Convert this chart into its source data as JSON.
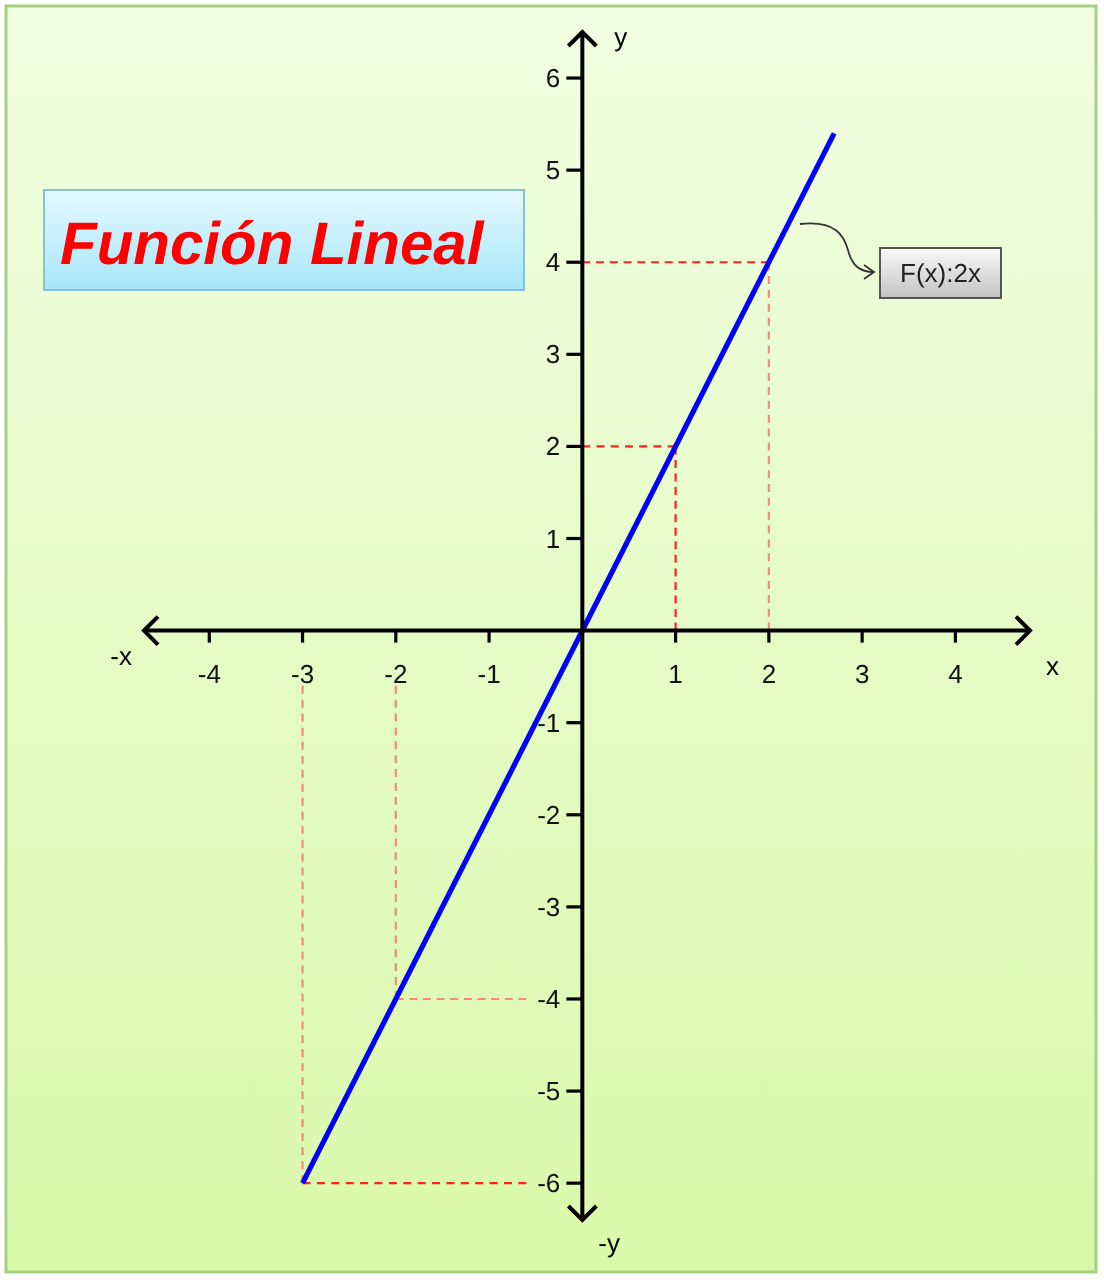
{
  "chart_data": {
    "type": "line",
    "title": "Función Lineal",
    "xlabel": "x",
    "ylabel": "y",
    "annotations": [
      "F(x):2x",
      "-x",
      "-y"
    ],
    "xlim": [
      -4.7,
      4.8
    ],
    "ylim": [
      -6.4,
      6.5
    ],
    "xticks": [
      -4,
      -3,
      -2,
      -1,
      1,
      2,
      3,
      4
    ],
    "yticks": [
      -6,
      -5,
      -4,
      -3,
      -2,
      -1,
      1,
      2,
      3,
      4,
      5,
      6
    ],
    "series": [
      {
        "color": "#ff2020",
        "x": [
          0,
          2
        ],
        "values": [
          4,
          4
        ],
        "line_style": "dashed"
      },
      {
        "color": "#f48c78",
        "x": [
          2,
          2
        ],
        "values": [
          4,
          0
        ],
        "line_style": "dashed"
      },
      {
        "color": "#ff2020",
        "x": [
          0,
          1
        ],
        "values": [
          2,
          2
        ],
        "line_style": "dashed"
      },
      {
        "color": "#ff2020",
        "x": [
          1,
          1
        ],
        "values": [
          2,
          0
        ],
        "line_style": "dashed"
      },
      {
        "color": "#f48c78",
        "x": [
          -2,
          -2
        ],
        "values": [
          -0.6,
          -4
        ],
        "line_style": "dashed"
      },
      {
        "color": "#f48c78",
        "x": [
          -2,
          -0.6
        ],
        "values": [
          -4,
          -4
        ],
        "line_style": "dashed"
      },
      {
        "color": "#f48c78",
        "x": [
          -3,
          -3
        ],
        "values": [
          -0.6,
          -6
        ],
        "line_style": "dashed"
      },
      {
        "color": "#ff2020",
        "x": [
          -3,
          -0.6
        ],
        "values": [
          -6,
          -6
        ],
        "line_style": "dashed"
      },
      {
        "color": "#0000ff",
        "x": [
          -3,
          2.7
        ],
        "values": [
          -6,
          5.4
        ],
        "line_style": "solid"
      }
    ]
  }
}
